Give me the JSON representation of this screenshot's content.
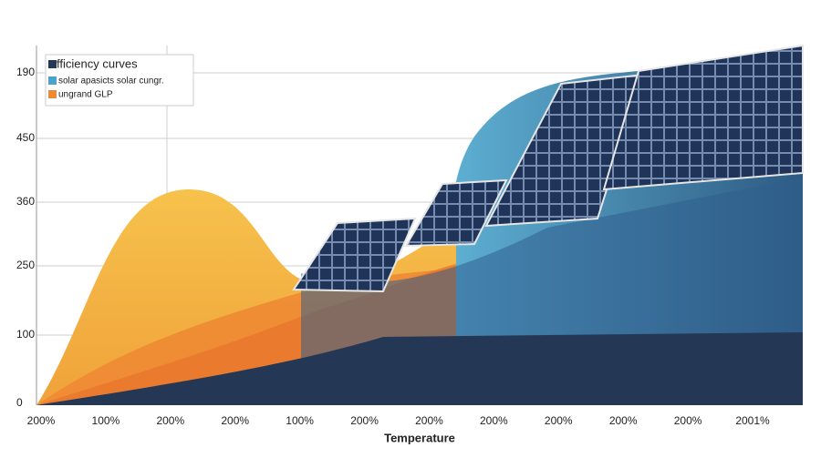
{
  "legend": {
    "title": "fficiency curves",
    "items": [
      "solar apasicts solar cungr.",
      "ungrand GLP"
    ]
  },
  "y_labels": [
    "190",
    "450",
    "360",
    "250",
    "100",
    "0"
  ],
  "x_labels": [
    "200%",
    "100%",
    "200%",
    "200%",
    "100%",
    "200%",
    "200%",
    "200%",
    "200%",
    "200%",
    "200%",
    "2001%"
  ],
  "x_axis_title": "Temperature"
}
